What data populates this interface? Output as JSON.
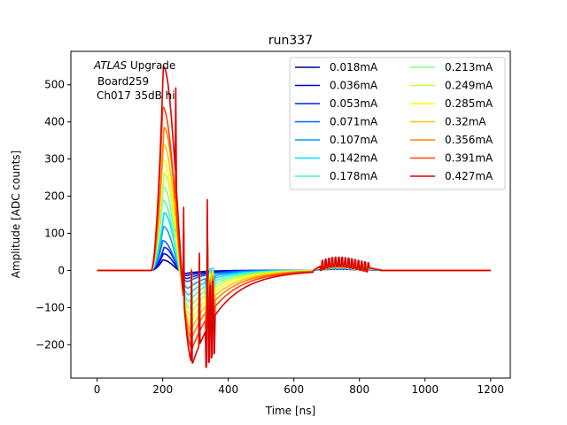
{
  "chart_data": {
    "type": "line",
    "title": "run337",
    "xlabel": "Time [ns]",
    "ylabel": "Amplitude [ADC counts]",
    "xlim": [
      -80,
      1260
    ],
    "ylim": [
      -290,
      590
    ],
    "xticks": [
      0,
      200,
      400,
      600,
      800,
      1000,
      1200
    ],
    "yticks": [
      -200,
      -100,
      0,
      100,
      200,
      300,
      400,
      500
    ],
    "xtick_labels": [
      "0",
      "200",
      "400",
      "600",
      "800",
      "1000",
      "1200"
    ],
    "ytick_labels": [
      "−200",
      "−100",
      "0",
      "100",
      "200",
      "300",
      "400",
      "500"
    ],
    "grid": false,
    "legend_position": "top-right",
    "legend_columns": 2,
    "annotation": {
      "line1_italic": "ATLAS",
      "line1_rest": " Upgrade",
      "line2": "Board259",
      "line3": "Ch017 35dB hi"
    },
    "series": [
      {
        "name": "0.018mA",
        "color": "#00008f",
        "peak": 28,
        "undershoot": -8
      },
      {
        "name": "0.036mA",
        "color": "#0000dc",
        "peak": 45,
        "undershoot": -14
      },
      {
        "name": "0.053mA",
        "color": "#0020ff",
        "peak": 62,
        "undershoot": -22
      },
      {
        "name": "0.071mA",
        "color": "#0060ff",
        "peak": 80,
        "undershoot": -30
      },
      {
        "name": "0.107mA",
        "color": "#009fff",
        "peak": 118,
        "undershoot": -48
      },
      {
        "name": "0.142mA",
        "color": "#00dfff",
        "peak": 155,
        "undershoot": -66
      },
      {
        "name": "0.178mA",
        "color": "#3fffbf",
        "peak": 190,
        "undershoot": -84
      },
      {
        "name": "0.213mA",
        "color": "#80ff80",
        "peak": 225,
        "undershoot": -102
      },
      {
        "name": "0.249mA",
        "color": "#bfff40",
        "peak": 262,
        "undershoot": -120
      },
      {
        "name": "0.285mA",
        "color": "#ffff00",
        "peak": 300,
        "undershoot": -140
      },
      {
        "name": "0.32mA",
        "color": "#ffbf00",
        "peak": 340,
        "undershoot": -160
      },
      {
        "name": "0.356mA",
        "color": "#ff8000",
        "peak": 385,
        "undershoot": -182
      },
      {
        "name": "0.391mA",
        "color": "#ff4000",
        "peak": 440,
        "undershoot": -210
      },
      {
        "name": "0.427mA",
        "color": "#dc0000",
        "peak": 550,
        "undershoot": -250
      }
    ]
  }
}
